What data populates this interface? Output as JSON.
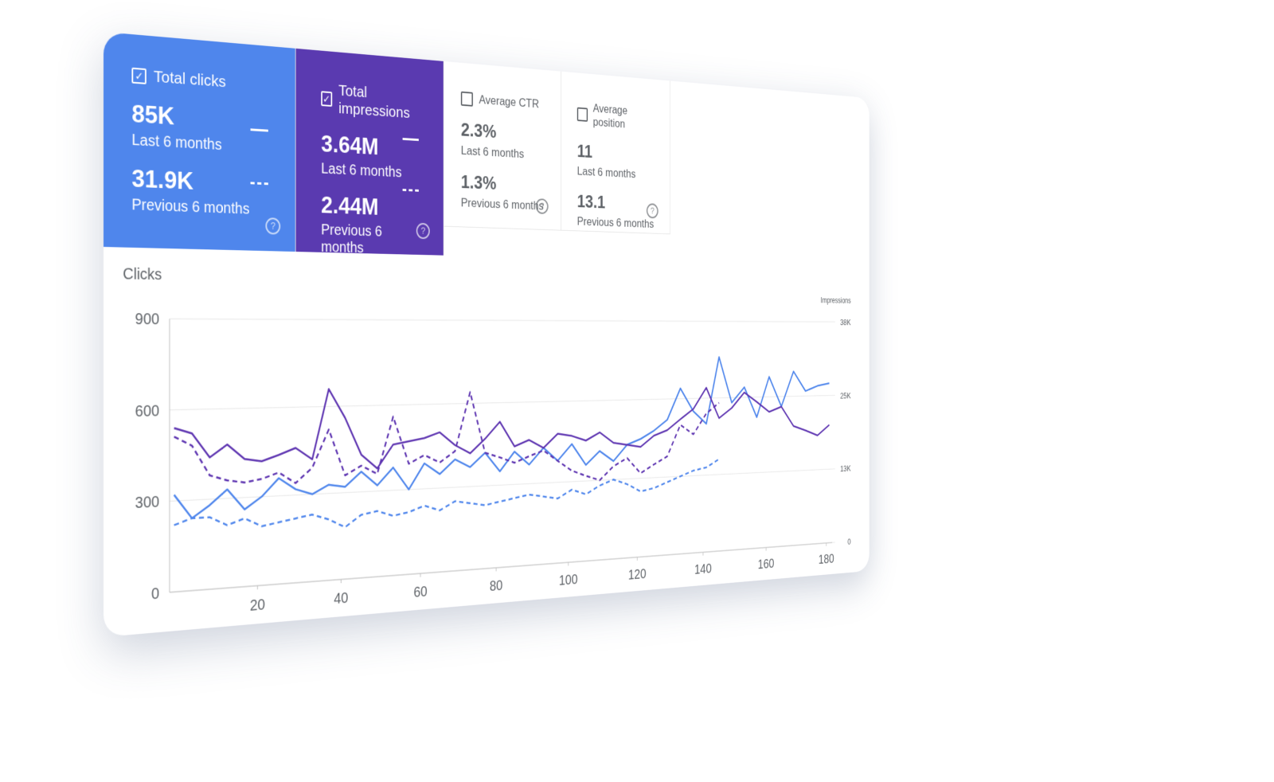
{
  "cards": [
    {
      "title": "Total clicks",
      "current": "85K",
      "current_label": "Last 6 months",
      "previous": "31.9K",
      "previous_label": "Previous 6 months"
    },
    {
      "title": "Total impressions",
      "current": "3.64M",
      "current_label": "Last 6 months",
      "previous": "2.44M",
      "previous_label": "Previous 6 months"
    },
    {
      "title": "Average CTR",
      "current": "2.3%",
      "current_label": "Last 6 months",
      "previous": "1.3%",
      "previous_label": "Previous 6 months"
    },
    {
      "title": "Average position",
      "current": "11",
      "current_label": "Last 6 months",
      "previous": "13.1",
      "previous_label": "Previous 6 months"
    }
  ],
  "chart_data": {
    "type": "line",
    "y_label": "Clicks",
    "y2_label": "Impressions",
    "x": [
      1,
      5,
      9,
      13,
      17,
      21,
      25,
      29,
      33,
      37,
      41,
      45,
      49,
      53,
      57,
      61,
      65,
      69,
      73,
      77,
      81,
      85,
      89,
      93,
      97,
      101,
      105,
      109,
      113,
      117,
      121,
      125,
      129,
      133,
      137,
      141,
      145,
      149,
      153,
      157,
      161,
      165,
      169,
      173,
      177,
      181
    ],
    "xlim": [
      0,
      182
    ],
    "xticks": [
      20,
      40,
      60,
      80,
      100,
      120,
      140,
      160,
      180
    ],
    "ylim": [
      0,
      900
    ],
    "yticks": [
      0,
      300,
      600,
      900
    ],
    "y2lim": [
      0,
      37500
    ],
    "y2ticks": [
      0,
      {
        "value": 12500,
        "label": "13K"
      },
      {
        "value": 25000,
        "label": "25K"
      },
      {
        "value": 37500,
        "label": "38K"
      }
    ],
    "grid": true,
    "series": [
      {
        "color": "#4f86ec",
        "dash": false,
        "values": [
          320,
          240,
          280,
          330,
          260,
          300,
          360,
          320,
          300,
          330,
          320,
          370,
          320,
          380,
          300,
          390,
          350,
          400,
          370,
          420,
          350,
          420,
          370,
          430,
          380,
          440,
          360,
          410,
          370,
          430,
          450,
          480,
          520,
          640,
          550,
          500,
          760,
          580,
          640,
          520,
          680,
          560,
          700,
          620,
          640,
          650
        ]
      },
      {
        "color": "#4f86ec",
        "dash": true,
        "values": [
          220,
          240,
          240,
          210,
          230,
          200,
          210,
          220,
          230,
          210,
          180,
          220,
          230,
          210,
          220,
          240,
          220,
          250,
          240,
          230,
          240,
          250,
          260,
          250,
          240,
          270,
          250,
          280,
          300,
          280,
          250,
          260,
          280,
          300,
          320,
          330,
          360,
          null,
          null,
          null,
          null,
          null,
          null,
          null,
          null,
          null
        ]
      },
      {
        "color": "#5e35b1",
        "dash": false,
        "axis": "y2",
        "values": [
          22500,
          21700,
          18300,
          20000,
          17900,
          17500,
          18300,
          19200,
          17500,
          27500,
          23300,
          17900,
          15800,
          19200,
          19600,
          20000,
          20800,
          18800,
          17500,
          19600,
          22100,
          18300,
          19200,
          17900,
          20000,
          19600,
          18800,
          20000,
          18300,
          17900,
          17500,
          19200,
          20000,
          21700,
          23300,
          26700,
          21700,
          23300,
          25800,
          24200,
          22500,
          23300,
          20000,
          19200,
          18300,
          20000
        ]
      },
      {
        "color": "#5e35b1",
        "dash": true,
        "axis": "y2",
        "values": [
          21300,
          20000,
          15800,
          15000,
          14600,
          15000,
          15800,
          14200,
          16300,
          21700,
          15000,
          16300,
          15000,
          23300,
          16300,
          17500,
          16300,
          17900,
          26700,
          17500,
          16700,
          15800,
          16700,
          17500,
          15800,
          14200,
          13300,
          12500,
          14600,
          15800,
          13300,
          14600,
          15800,
          20800,
          19200,
          22500,
          24200,
          null,
          null,
          null,
          null,
          null,
          null,
          null,
          null,
          null
        ]
      }
    ]
  }
}
